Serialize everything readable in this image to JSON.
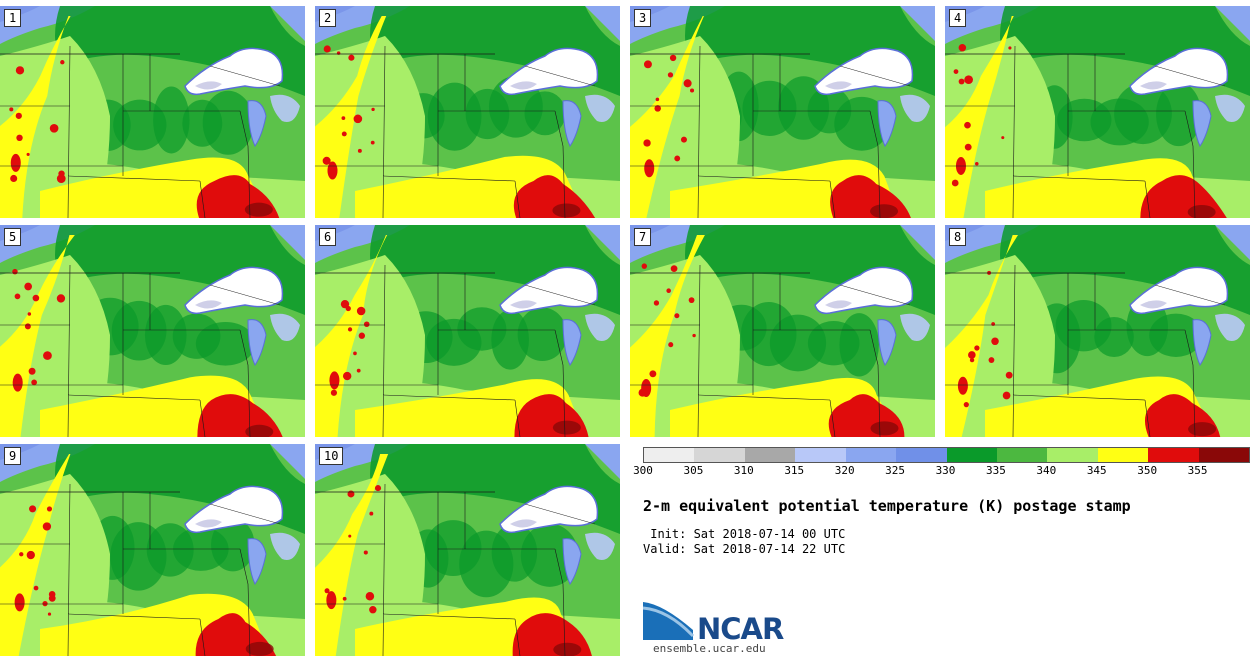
{
  "panels": [
    {
      "label": "1"
    },
    {
      "label": "2"
    },
    {
      "label": "3"
    },
    {
      "label": "4"
    },
    {
      "label": "5"
    },
    {
      "label": "6"
    },
    {
      "label": "7"
    },
    {
      "label": "8"
    },
    {
      "label": "9"
    },
    {
      "label": "10"
    }
  ],
  "colorbar": {
    "colors": [
      "#eeeeee",
      "#d6d6d6",
      "#a8a8a8",
      "#b8c8f8",
      "#8aa6f0",
      "#7090e8",
      "#0a9a2a",
      "#4cb840",
      "#a8ee68",
      "#ffff14",
      "#e00c0c",
      "#8a0808"
    ],
    "ticks": [
      "300",
      "305",
      "310",
      "315",
      "320",
      "325",
      "330",
      "335",
      "340",
      "345",
      "350",
      "355"
    ]
  },
  "title": "2-m equivalent potential temperature (K) postage stamp",
  "init_text": " Init: Sat 2018-07-14 00 UTC",
  "valid_text": "Valid: Sat 2018-07-14 22 UTC",
  "logo": {
    "name": "NCAR",
    "url": "ensemble.ucar.edu"
  },
  "map_colors": {
    "land_base": "#5cc24a",
    "dark_green": "#0a9a2a",
    "light_green": "#a8ee68",
    "yellow": "#ffff14",
    "red": "#e00c0c",
    "dark_red": "#8a0808",
    "blue": "#8aa6f0",
    "light_blue": "#b8c8f8",
    "lake": "#ffffff"
  }
}
